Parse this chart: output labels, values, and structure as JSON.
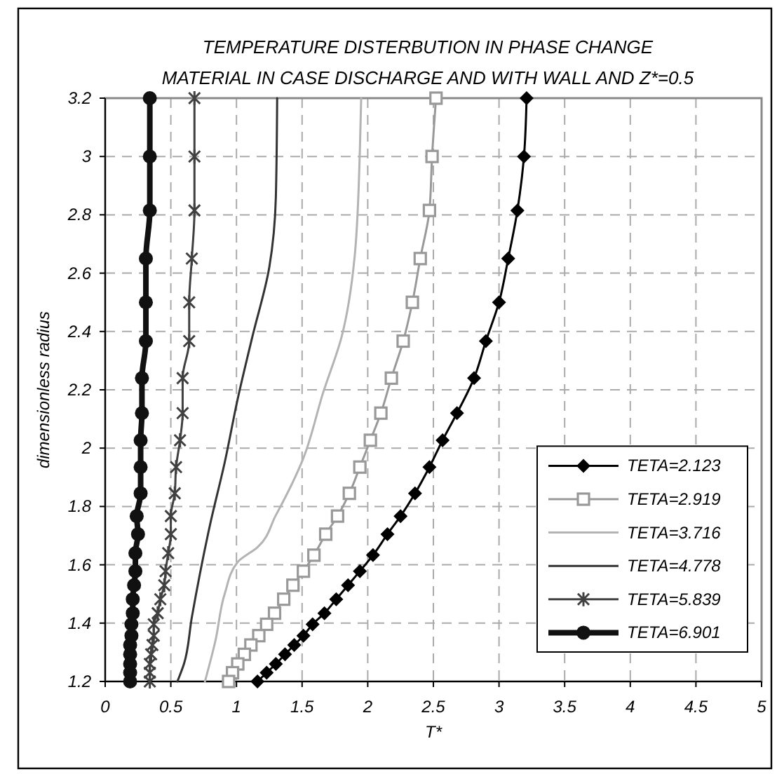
{
  "chart_data": {
    "type": "line",
    "title": "TEMPERATURE DISTERBUTION IN PHASE CHANGE MATERIAL IN CASE DISCHARGE AND WITH WALL AND Z*=0.5",
    "xlabel": "T*",
    "ylabel": "dimensionless radius",
    "xlim": [
      0,
      5
    ],
    "ylim": [
      1.2,
      3.2
    ],
    "xticks": [
      0,
      0.5,
      1,
      1.5,
      2,
      2.5,
      3,
      3.5,
      4,
      4.5,
      5
    ],
    "yticks": [
      1.2,
      1.4,
      1.6,
      1.8,
      2,
      2.2,
      2.4,
      2.6,
      2.8,
      3,
      3.2
    ],
    "grid": true,
    "legend": "bottom right",
    "series": [
      {
        "name": "TETA=2.123",
        "color": "#000000",
        "marker": "diamond",
        "x": [
          3.21,
          3.19,
          3.14,
          3.07,
          3.0,
          2.9,
          2.81,
          2.68,
          2.57,
          2.47,
          2.36,
          2.25,
          2.15,
          2.04,
          1.94,
          1.85,
          1.76,
          1.67,
          1.58,
          1.51,
          1.44,
          1.37,
          1.3,
          1.23,
          1.16
        ],
        "values": [
          3.2,
          3.0,
          2.815,
          2.65,
          2.5,
          2.367,
          2.24,
          2.12,
          2.027,
          1.935,
          1.845,
          1.767,
          1.705,
          1.633,
          1.578,
          1.53,
          1.482,
          1.434,
          1.396,
          1.357,
          1.325,
          1.293,
          1.26,
          1.23,
          1.2
        ]
      },
      {
        "name": "TETA=2.919",
        "color": "#999999",
        "marker": "square",
        "x": [
          2.52,
          2.49,
          2.47,
          2.4,
          2.34,
          2.27,
          2.18,
          2.1,
          2.02,
          1.94,
          1.86,
          1.77,
          1.68,
          1.59,
          1.51,
          1.43,
          1.36,
          1.29,
          1.23,
          1.17,
          1.11,
          1.06,
          1.01,
          0.97,
          0.94
        ],
        "values": [
          3.2,
          3.0,
          2.815,
          2.65,
          2.5,
          2.367,
          2.24,
          2.12,
          2.027,
          1.935,
          1.845,
          1.767,
          1.705,
          1.633,
          1.578,
          1.53,
          1.482,
          1.434,
          1.396,
          1.357,
          1.325,
          1.293,
          1.26,
          1.23,
          1.2
        ]
      },
      {
        "name": "TETA=3.716",
        "color": "#b3b3b3",
        "marker": "none",
        "x": [
          1.95,
          1.94,
          1.9,
          1.8,
          1.66,
          1.51,
          1.3,
          1.16,
          1.01,
          0.91,
          0.84,
          0.76
        ],
        "values": [
          3.2,
          3.02,
          2.655,
          2.38,
          2.19,
          1.966,
          1.77,
          1.66,
          1.61,
          1.5,
          1.34,
          1.2
        ]
      },
      {
        "name": "TETA=4.778",
        "color": "#333333",
        "marker": "none",
        "x": [
          1.31,
          1.3,
          1.25,
          1.12,
          1.01,
          0.91,
          0.8,
          0.66,
          0.6,
          0.55
        ],
        "values": [
          3.2,
          2.86,
          2.62,
          2.38,
          2.17,
          1.95,
          1.74,
          1.42,
          1.26,
          1.2
        ]
      },
      {
        "name": "TETA=5.839",
        "color": "#404040",
        "marker": "cross",
        "x": [
          0.68,
          0.68,
          0.68,
          0.66,
          0.64,
          0.64,
          0.59,
          0.59,
          0.57,
          0.54,
          0.53,
          0.5,
          0.5,
          0.48,
          0.46,
          0.45,
          0.42,
          0.4,
          0.37,
          0.37,
          0.36,
          0.35,
          0.34,
          0.34,
          0.34
        ],
        "values": [
          3.2,
          3.0,
          2.815,
          2.65,
          2.5,
          2.367,
          2.24,
          2.12,
          2.027,
          1.935,
          1.845,
          1.767,
          1.705,
          1.64,
          1.578,
          1.53,
          1.482,
          1.434,
          1.396,
          1.357,
          1.325,
          1.293,
          1.26,
          1.23,
          1.2
        ]
      },
      {
        "name": "TETA=6.901",
        "color": "#111111",
        "marker": "circle",
        "x": [
          0.34,
          0.34,
          0.34,
          0.31,
          0.31,
          0.31,
          0.28,
          0.28,
          0.27,
          0.27,
          0.27,
          0.24,
          0.25,
          0.23,
          0.23,
          0.22,
          0.21,
          0.21,
          0.2,
          0.2,
          0.19,
          0.19,
          0.19,
          0.19,
          0.19
        ],
        "values": [
          3.2,
          3.0,
          2.815,
          2.65,
          2.5,
          2.367,
          2.24,
          2.12,
          2.027,
          1.935,
          1.845,
          1.767,
          1.705,
          1.64,
          1.578,
          1.53,
          1.482,
          1.434,
          1.396,
          1.357,
          1.325,
          1.293,
          1.26,
          1.23,
          1.2
        ]
      }
    ]
  }
}
